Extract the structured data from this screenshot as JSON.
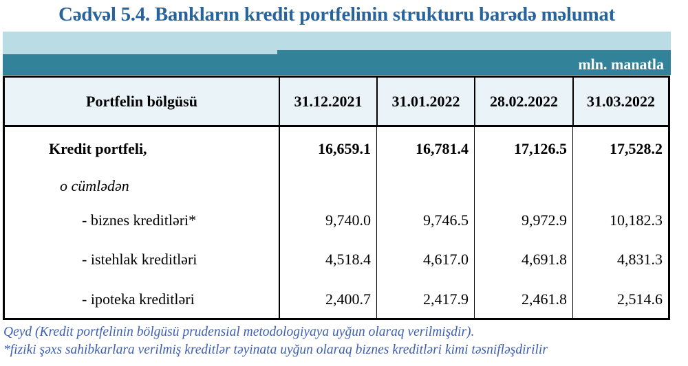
{
  "title": "Cədvəl 5.4. Bankların kredit portfelinin strukturu barədə məlumat",
  "unit_label": "mln. manatla",
  "colors": {
    "title_blue": "#29639c",
    "band_light_teal": "#b9dce5",
    "band_dark_teal": "#32829a",
    "header_cell_bg": "#eaf4f8",
    "note_blue": "#3e60ae",
    "border": "#000000"
  },
  "table": {
    "header": {
      "label": "Portfelin bölgüsü",
      "dates": [
        "31.12.2021",
        "31.01.2022",
        "28.02.2022",
        "31.03.2022"
      ]
    },
    "rows": [
      {
        "label": "Kredit portfeli,",
        "values": [
          "16,659.1",
          "16,781.4",
          "17,126.5",
          "17,528.2"
        ]
      },
      {
        "label": "o cümlədən",
        "values": [
          "",
          "",
          "",
          ""
        ]
      },
      {
        "label": "- biznes kreditləri*",
        "values": [
          "9,740.0",
          "9,746.5",
          "9,972.9",
          "10,182.3"
        ]
      },
      {
        "label": "- istehlak kreditləri",
        "values": [
          "4,518.4",
          "4,617.0",
          "4,691.8",
          "4,831.3"
        ]
      },
      {
        "label": "- ipoteka kreditləri",
        "values": [
          "2,400.7",
          "2,417.9",
          "2,461.8",
          "2,514.6"
        ]
      }
    ]
  },
  "notes": [
    "Qeyd (Kredit portfelinin bölgüsü prudensial metodologiyaya uyğun olaraq verilmişdir).",
    "*fiziki şəxs sahibkarlara verilmiş kreditlər təyinata uyğun olaraq biznes kreditləri kimi təsnifləşdirilir"
  ]
}
